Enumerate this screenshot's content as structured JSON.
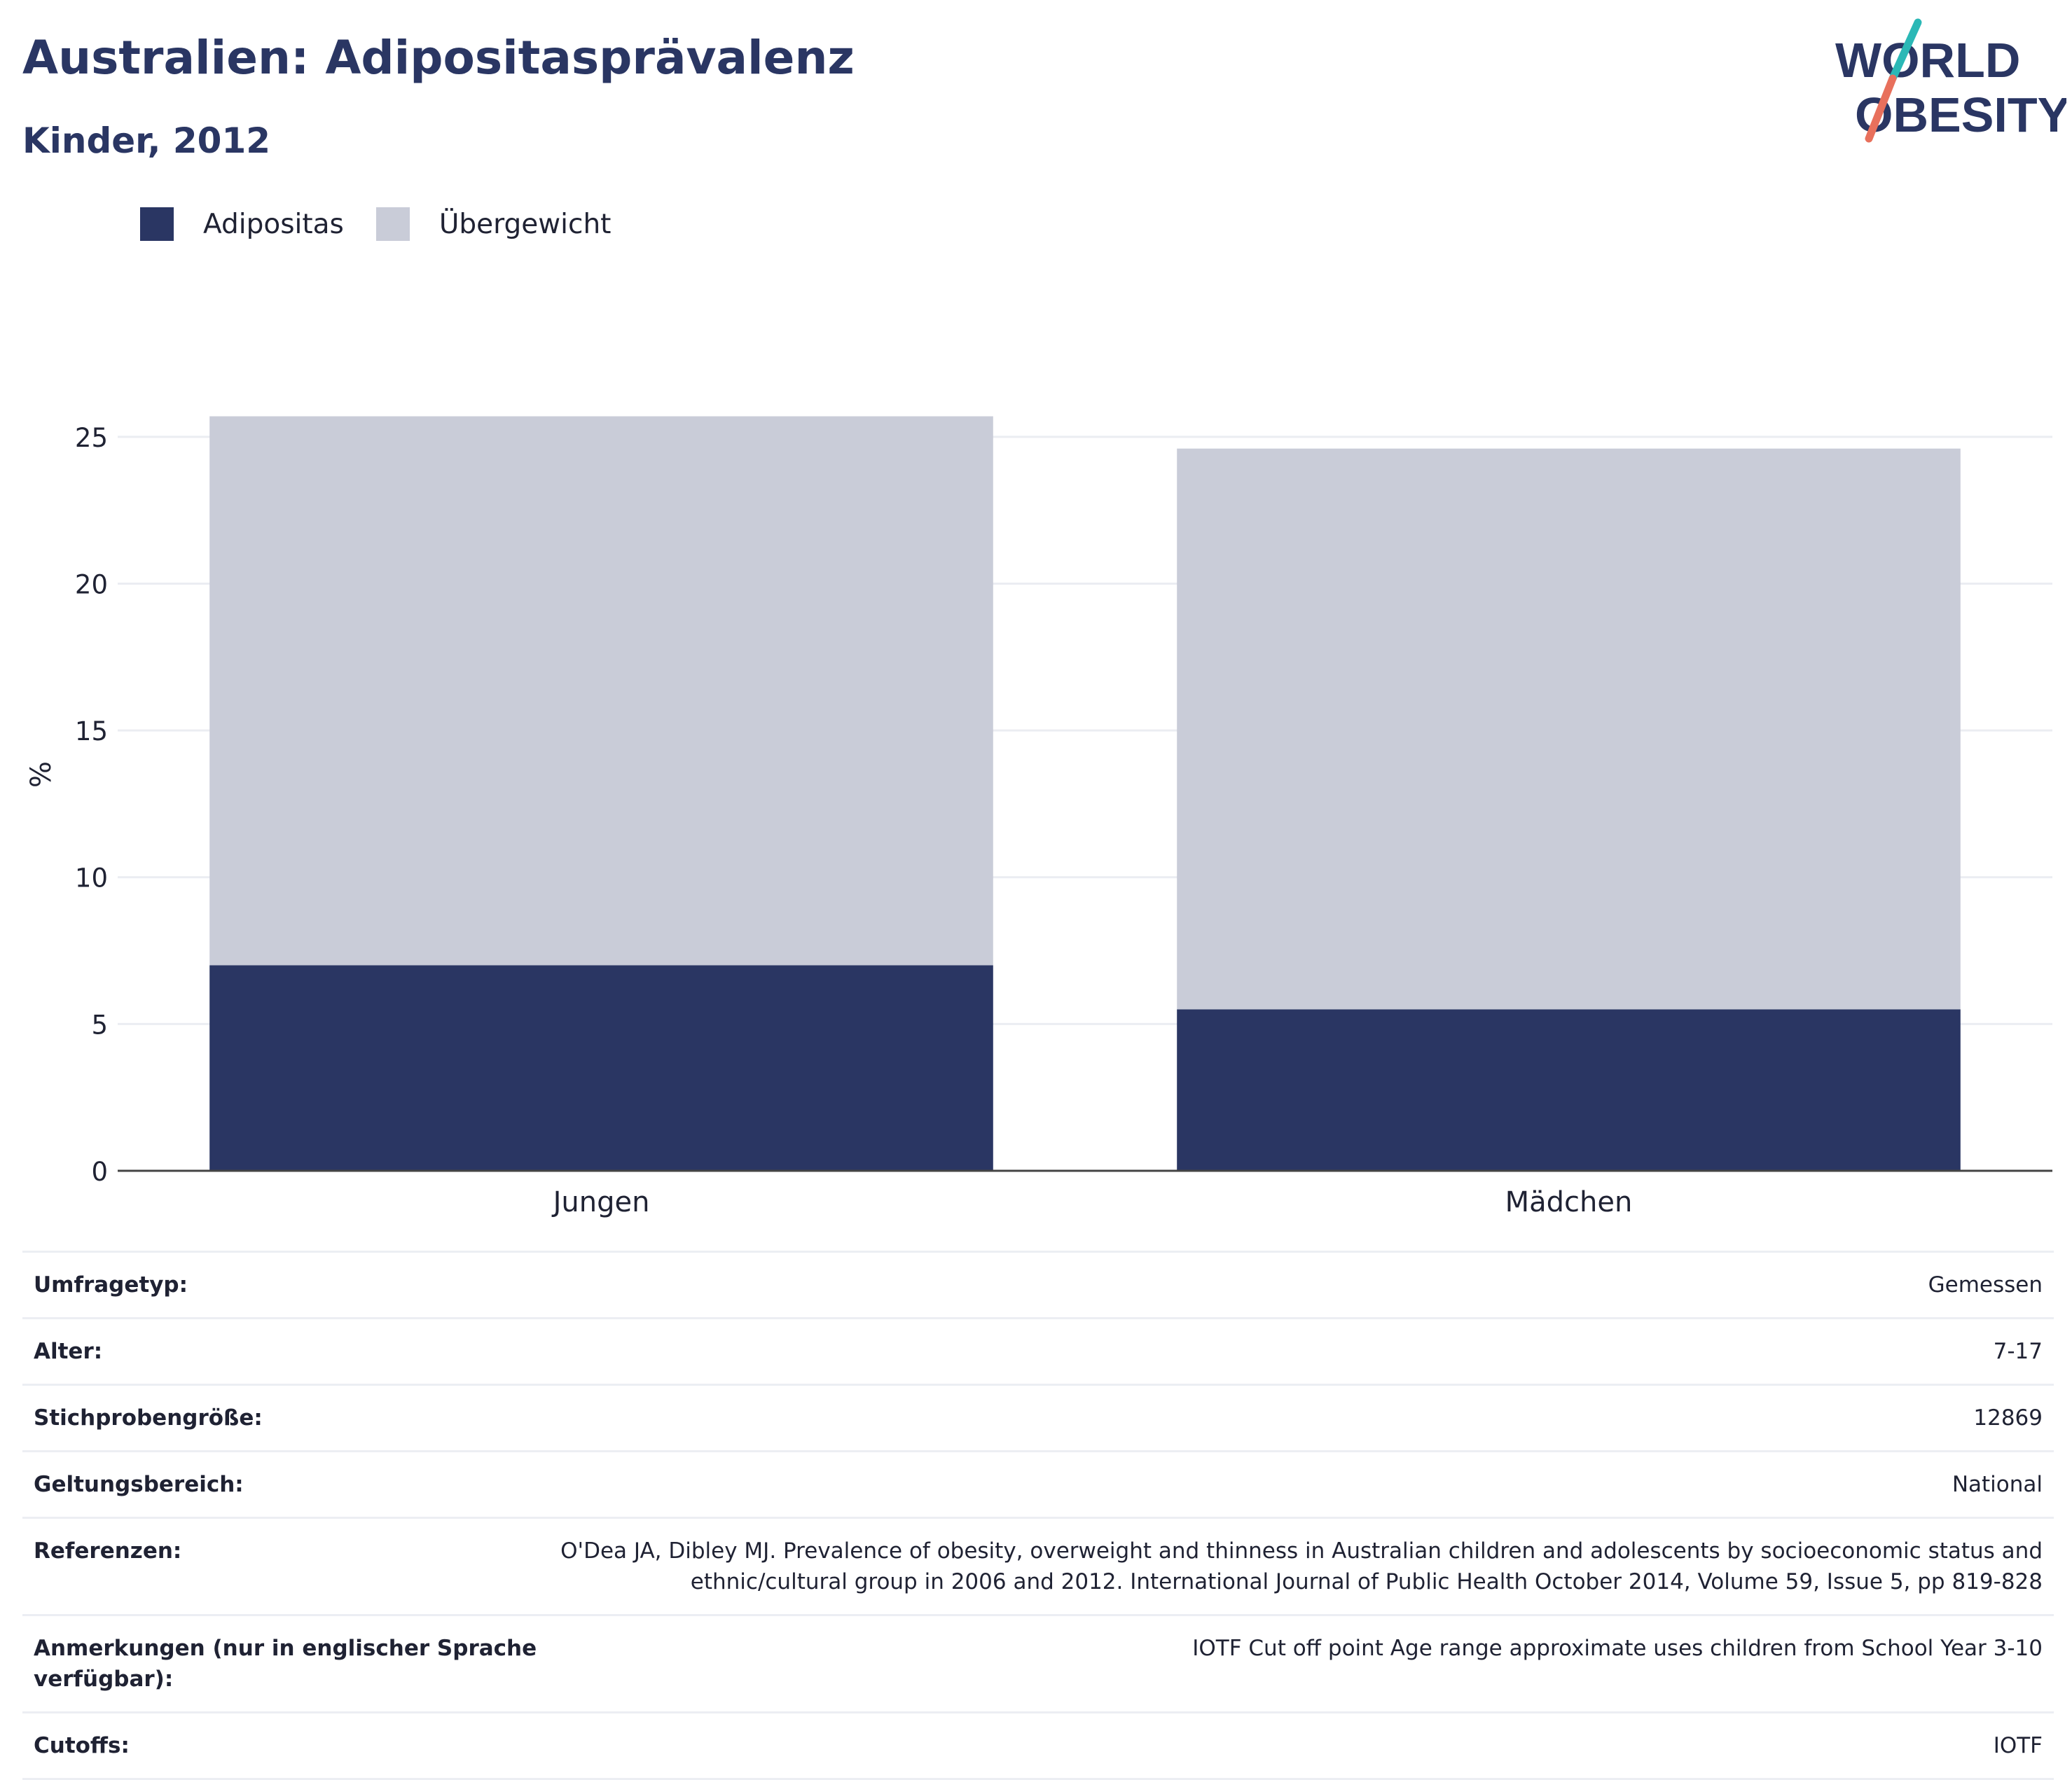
{
  "header": {
    "title": "Australien: Adipositasprävalenz",
    "subtitle": "Kinder, 2012"
  },
  "logo": {
    "line1": "WORLD",
    "line2": "OBESITY",
    "colors": {
      "text": "#2a3663",
      "slash_top": "#2bb8b6",
      "slash_bottom": "#e8705c"
    }
  },
  "legend": {
    "items": [
      {
        "label": "Adipositas",
        "color": "#2a3663"
      },
      {
        "label": "Übergewicht",
        "color": "#c9ccd8"
      }
    ]
  },
  "chart_data": {
    "type": "bar",
    "stacked": true,
    "categories": [
      "Jungen",
      "Mädchen"
    ],
    "series": [
      {
        "name": "Adipositas",
        "values": [
          7.0,
          5.5
        ],
        "color": "#2a3663"
      },
      {
        "name": "Übergewicht",
        "values": [
          18.7,
          19.1
        ],
        "color": "#c9ccd8"
      }
    ],
    "ylabel": "%",
    "ylim": [
      0,
      27
    ],
    "yticks": [
      0,
      5,
      10,
      15,
      20,
      25
    ],
    "grid": true,
    "legend_position": "top-left"
  },
  "info": {
    "rows": [
      {
        "label": "Umfragetyp:",
        "value": "Gemessen"
      },
      {
        "label": "Alter:",
        "value": "7-17"
      },
      {
        "label": "Stichprobengröße:",
        "value": "12869"
      },
      {
        "label": "Geltungsbereich:",
        "value": "National"
      },
      {
        "label": "Referenzen:",
        "value": "O'Dea JA, Dibley MJ. Prevalence of obesity, overweight and thinness in Australian children and adolescents by socioeconomic status and ethnic/cultural group in 2006 and 2012. International Journal of Public Health October 2014, Volume 59, Issue 5, pp 819-828"
      },
      {
        "label": "Anmerkungen (nur in englischer Sprache verfügbar):",
        "value": "IOTF Cut off point Age range approximate uses children from School Year 3-10"
      },
      {
        "label": "Cutoffs:",
        "value": "IOTF"
      }
    ]
  }
}
